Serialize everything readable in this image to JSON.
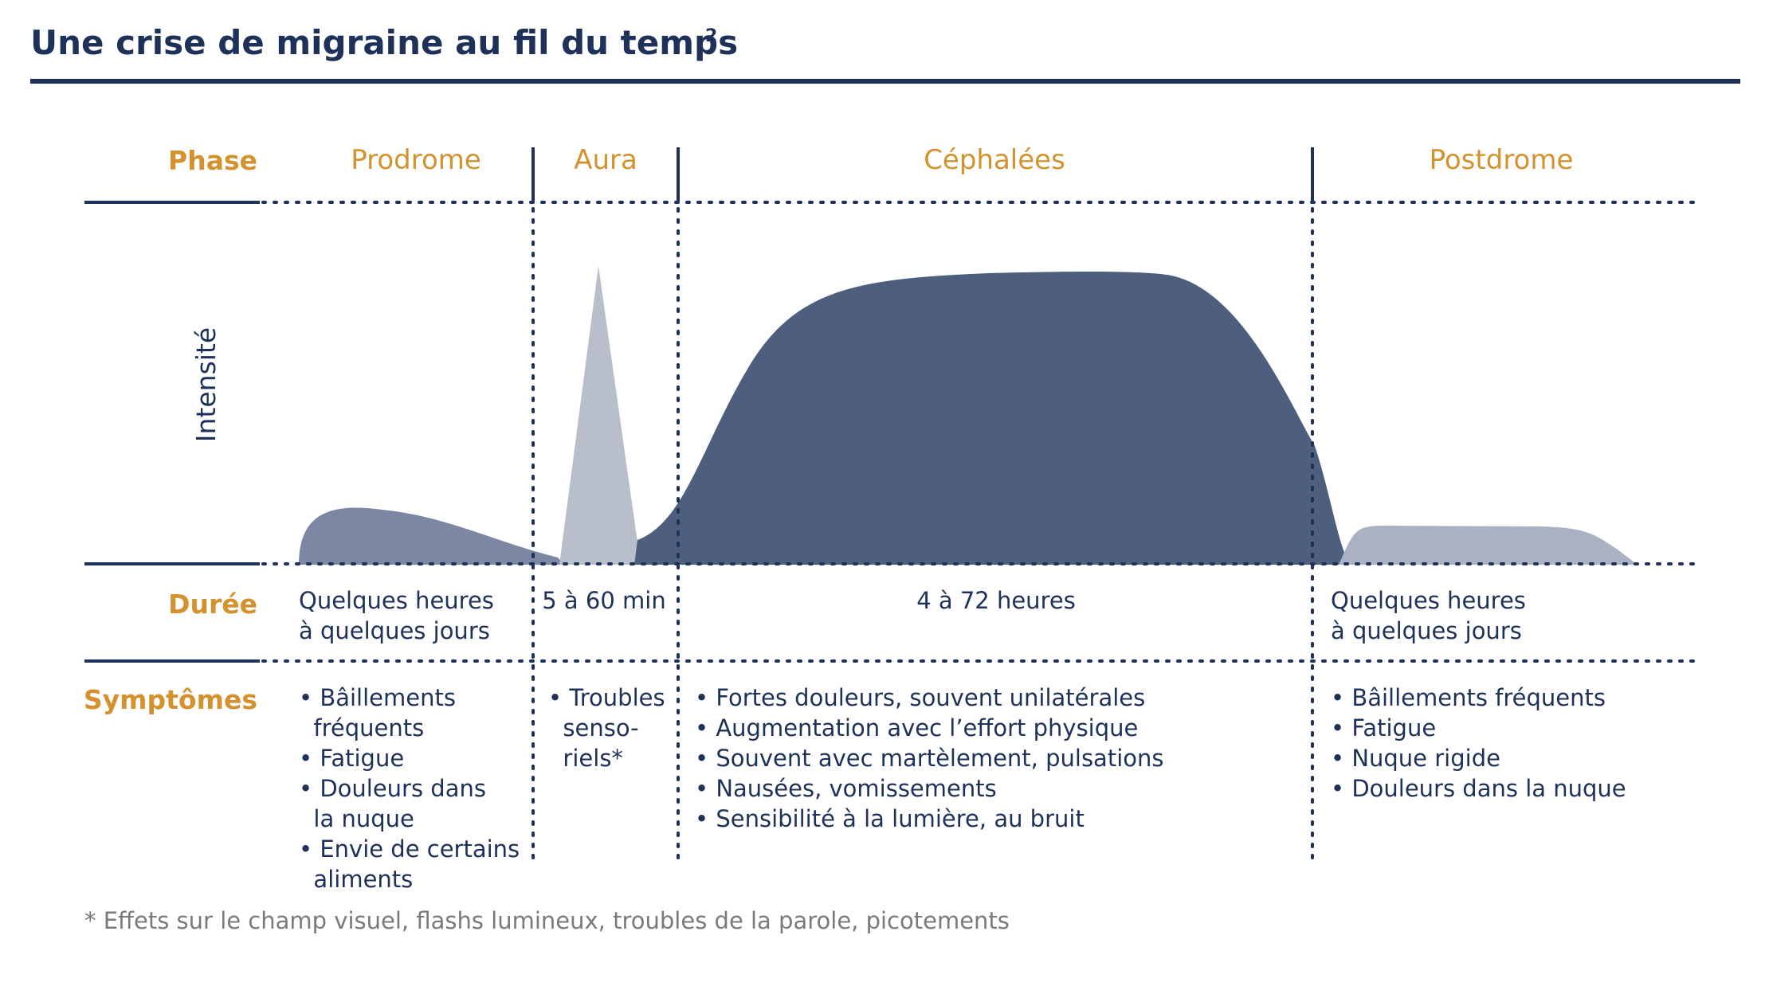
{
  "title": "Une crise de migraine au fil du temps",
  "title_sup": "2",
  "row_labels": {
    "phase": "Phase",
    "duree": "Durée",
    "symptomes": "Symptômes"
  },
  "y_axis_label": "Intensité",
  "phases": [
    {
      "name": "Prodrome",
      "duration": [
        "Quelques heures",
        "à quelques jours"
      ],
      "symptoms": [
        "• Bâillements",
        "  fréquents",
        "• Fatigue",
        "• Douleurs dans",
        "  la nuque",
        "• Envie de certains",
        "  aliments"
      ]
    },
    {
      "name": "Aura",
      "duration": [
        "5 à 60 min"
      ],
      "symptoms": [
        "• Troubles",
        "  senso-",
        "  riels*"
      ]
    },
    {
      "name": "Céphalées",
      "duration": [
        "4 à 72 heures"
      ],
      "symptoms": [
        "• Fortes douleurs, souvent unilatérales",
        "• Augmentation avec l’effort physique",
        "• Souvent avec martèlement, pulsations",
        "• Nausées, vomissements",
        "• Sensibilité à la lumière, au bruit"
      ]
    },
    {
      "name": "Postdrome",
      "duration": [
        "Quelques heures",
        "à quelques jours"
      ],
      "symptoms": [
        "• Bâillements fréquents",
        "• Fatigue",
        "• Nuque rigide",
        "• Douleurs dans la nuque"
      ]
    }
  ],
  "footnote": "* Effets sur le champ visuel, flashs lumineux, troubles de la parole, picotements",
  "colors": {
    "navy": "#1e3158",
    "orange": "#d4922e",
    "prodrome_fill": "#7b87a3",
    "aura_fill": "#b8bfca",
    "cephalees_fill": "#4d5f7c",
    "postdrome_fill": "#a9b1c2",
    "footnote": "#7a7a7a"
  }
}
